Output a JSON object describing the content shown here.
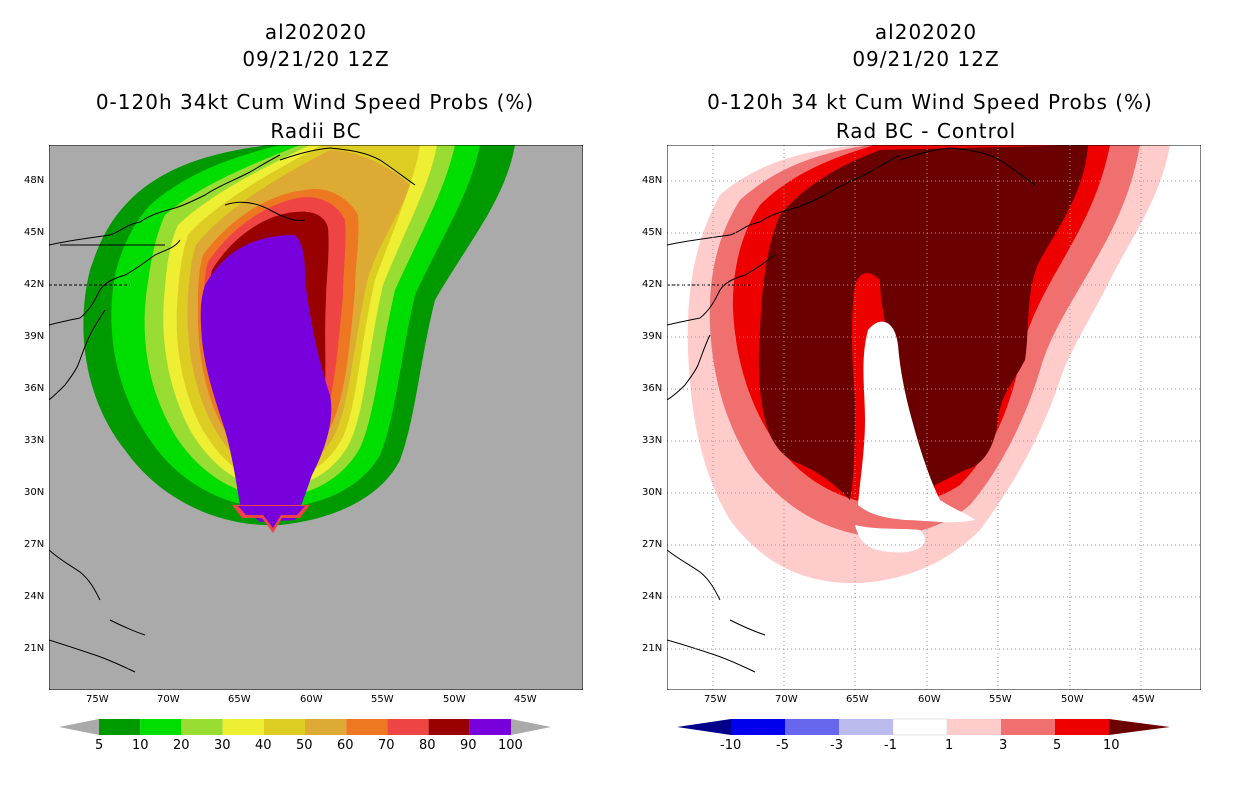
{
  "left": {
    "storm_id": "al202020",
    "datetime": "09/21/20 12Z",
    "title": "0-120h 34kt Cum Wind Speed Probs (%)",
    "subtitle": "Radii BC",
    "colorbar": {
      "labels": [
        "5",
        "10",
        "20",
        "30",
        "40",
        "50",
        "60",
        "70",
        "80",
        "90",
        "100"
      ],
      "colors": [
        "#009900",
        "#00dd00",
        "#99dd33",
        "#eeee33",
        "#ddcc22",
        "#ddaa33",
        "#ee7722",
        "#ee4444",
        "#990000",
        "#7700dd"
      ]
    }
  },
  "right": {
    "storm_id": "al202020",
    "datetime": "09/21/20 12Z",
    "title": "0-120h 34 kt Cum Wind Speed Probs (%)",
    "subtitle": "Rad BC - Control",
    "colorbar": {
      "labels": [
        "-10",
        "-5",
        "-3",
        "-1",
        "1",
        "3",
        "5",
        "10"
      ],
      "colors": [
        "#00008b",
        "#0000ee",
        "#6666ee",
        "#bbbbee",
        "#ffffff",
        "#ffcccc",
        "#f07070",
        "#ee0000"
      ],
      "low_arrow_color": "#00008b",
      "high_arrow_color": "#6b0000"
    }
  },
  "axes": {
    "lat_labels": [
      "48N",
      "45N",
      "42N",
      "39N",
      "36N",
      "33N",
      "30N",
      "27N",
      "24N",
      "21N"
    ],
    "lon_labels": [
      "75W",
      "70W",
      "65W",
      "60W",
      "55W",
      "50W",
      "45W"
    ]
  }
}
